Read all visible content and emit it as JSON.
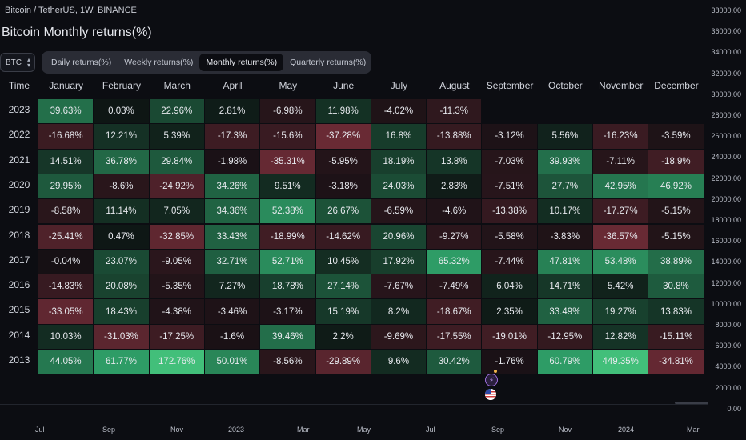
{
  "header": {
    "symbol_info": "Bitcoin / TetherUS, 1W, BINANCE",
    "indicator_title": "Bitcoin Monthly returns(%)"
  },
  "symbol_select": {
    "value": "BTC"
  },
  "tabs": [
    "Daily returns(%)",
    "Weekly returns(%)",
    "Monthly returns(%)",
    "Quarterly returns(%)"
  ],
  "active_tab": 2,
  "table": {
    "corner_label": "Time",
    "months": [
      "January",
      "February",
      "March",
      "April",
      "May",
      "June",
      "July",
      "August",
      "September",
      "October",
      "November",
      "December"
    ],
    "rows": [
      {
        "year": "2023",
        "values": [
          "39.63%",
          "0.03%",
          "22.96%",
          "2.81%",
          "-6.98%",
          "11.98%",
          "-4.02%",
          "-11.3%",
          "",
          "",
          "",
          ""
        ]
      },
      {
        "year": "2022",
        "values": [
          "-16.68%",
          "12.21%",
          "5.39%",
          "-17.3%",
          "-15.6%",
          "-37.28%",
          "16.8%",
          "-13.88%",
          "-3.12%",
          "5.56%",
          "-16.23%",
          "-3.59%"
        ]
      },
      {
        "year": "2021",
        "values": [
          "14.51%",
          "36.78%",
          "29.84%",
          "-1.98%",
          "-35.31%",
          "-5.95%",
          "18.19%",
          "13.8%",
          "-7.03%",
          "39.93%",
          "-7.11%",
          "-18.9%"
        ]
      },
      {
        "year": "2020",
        "values": [
          "29.95%",
          "-8.6%",
          "-24.92%",
          "34.26%",
          "9.51%",
          "-3.18%",
          "24.03%",
          "2.83%",
          "-7.51%",
          "27.7%",
          "42.95%",
          "46.92%"
        ]
      },
      {
        "year": "2019",
        "values": [
          "-8.58%",
          "11.14%",
          "7.05%",
          "34.36%",
          "52.38%",
          "26.67%",
          "-6.59%",
          "-4.6%",
          "-13.38%",
          "10.17%",
          "-17.27%",
          "-5.15%"
        ]
      },
      {
        "year": "2018",
        "values": [
          "-25.41%",
          "0.47%",
          "-32.85%",
          "33.43%",
          "-18.99%",
          "-14.62%",
          "20.96%",
          "-9.27%",
          "-5.58%",
          "-3.83%",
          "-36.57%",
          "-5.15%"
        ]
      },
      {
        "year": "2017",
        "values": [
          "-0.04%",
          "23.07%",
          "-9.05%",
          "32.71%",
          "52.71%",
          "10.45%",
          "17.92%",
          "65.32%",
          "-7.44%",
          "47.81%",
          "53.48%",
          "38.89%"
        ]
      },
      {
        "year": "2016",
        "values": [
          "-14.83%",
          "20.08%",
          "-5.35%",
          "7.27%",
          "18.78%",
          "27.14%",
          "-7.67%",
          "-7.49%",
          "6.04%",
          "14.71%",
          "5.42%",
          "30.8%"
        ]
      },
      {
        "year": "2015",
        "values": [
          "-33.05%",
          "18.43%",
          "-4.38%",
          "-3.46%",
          "-3.17%",
          "15.19%",
          "8.2%",
          "-18.67%",
          "2.35%",
          "33.49%",
          "19.27%",
          "13.83%"
        ]
      },
      {
        "year": "2014",
        "values": [
          "10.03%",
          "-31.03%",
          "-17.25%",
          "-1.6%",
          "39.46%",
          "2.2%",
          "-9.69%",
          "-17.55%",
          "-19.01%",
          "-12.95%",
          "12.82%",
          "-15.11%"
        ]
      },
      {
        "year": "2013",
        "values": [
          "44.05%",
          "61.77%",
          "172.76%",
          "50.01%",
          "-8.56%",
          "-29.89%",
          "9.6%",
          "30.42%",
          "-1.76%",
          "60.79%",
          "449.35%",
          "-34.81%"
        ]
      }
    ]
  },
  "price_axis": [
    "38000.00",
    "36000.00",
    "34000.00",
    "32000.00",
    "30000.00",
    "28000.00",
    "26000.00",
    "24000.00",
    "22000.00",
    "20000.00",
    "18000.00",
    "16000.00",
    "14000.00",
    "12000.00",
    "10000.00",
    "8000.00",
    "6000.00",
    "4000.00",
    "2000.00",
    "0.00"
  ],
  "time_axis": [
    "Jul",
    "Sep",
    "Nov",
    "2023",
    "Mar",
    "May",
    "Jul",
    "Sep",
    "Nov",
    "2024",
    "Mar"
  ],
  "colors": {
    "background": "#0c0d12",
    "positive_base": "#2e9c66",
    "negative_base": "#9c3a48",
    "active_tab_bg": "#0c0d12",
    "tabs_bg": "#2a2c35"
  },
  "icons": {
    "event_lightning": "lightning-icon",
    "event_flag": "us-flag-icon"
  }
}
